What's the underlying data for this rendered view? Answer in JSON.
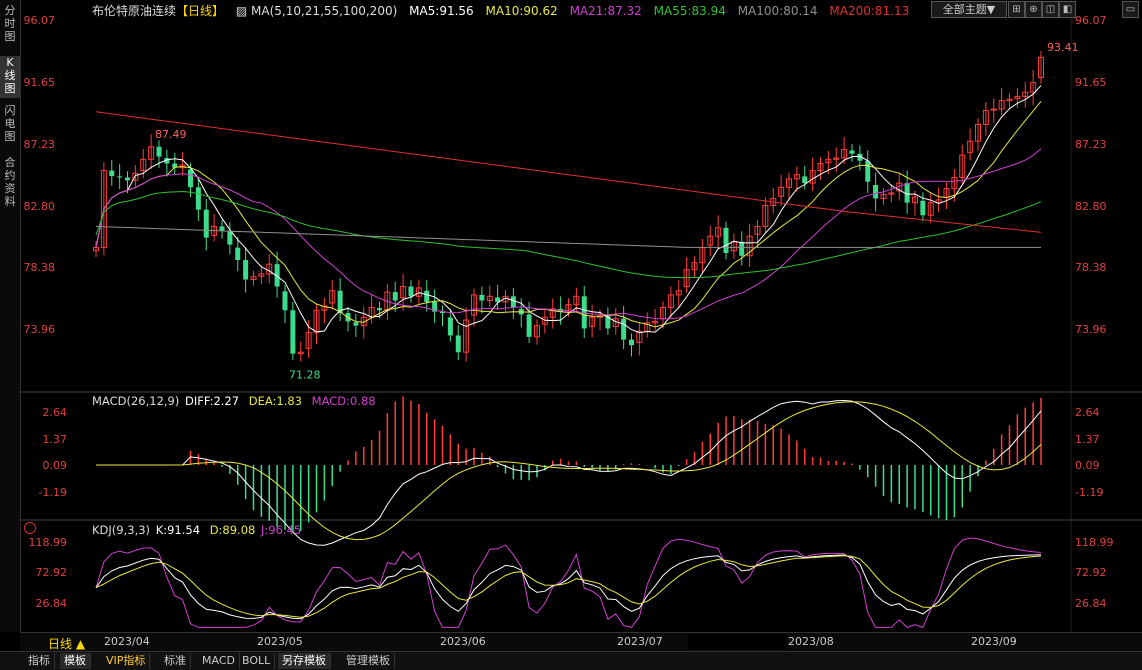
{
  "sidebar": {
    "items": [
      {
        "label": "分\n时\n图"
      },
      {
        "label": "K\n线\n图"
      },
      {
        "label": "闪\n电\n图"
      },
      {
        "label": "合\n约\n资\n料"
      }
    ]
  },
  "header": {
    "instrument": "布伦特原油连续",
    "period": "【日线】",
    "ma_params": "MA(5,10,21,55,100,200)",
    "ma5": "MA5:91.56",
    "ma10": "MA10:90.62",
    "ma21": "MA21:87.32",
    "ma55": "MA55:83.94",
    "ma100": "MA100:80.14",
    "ma200": "MA200:81.13"
  },
  "toolbar": {
    "theme_select": "全部主题▼",
    "btn1": "⊞",
    "btn2": "⊕",
    "btn3": "◫",
    "btn4": "◧",
    "btn5": "▭",
    "btn6": "✕"
  },
  "price_axis": [
    "96.07",
    "91.65",
    "87.23",
    "82.80",
    "78.38",
    "73.96"
  ],
  "price_marks": {
    "high": "87.49",
    "low": "71.28",
    "last": "93.41"
  },
  "macd": {
    "title": "MACD(26,12,9)",
    "diff": "DIFF:2.27",
    "dea": "DEA:1.83",
    "macd": "MACD:0.88",
    "axis": [
      "2.64",
      "1.37",
      "0.09",
      "-1.19"
    ]
  },
  "kdj": {
    "title": "KDJ(9,3,3)",
    "k": "K:91.54",
    "d": "D:89.08",
    "j": "J:96.45",
    "axis": [
      "118.99",
      "72.92",
      "26.84"
    ]
  },
  "xaxis": {
    "period_button": "日线 ▲",
    "dates": [
      "2023/04",
      "2023/05",
      "2023/06",
      "2023/07",
      "2023/08",
      "2023/09"
    ]
  },
  "bottom_tabs": [
    "指标",
    "模板",
    "VIP指标",
    "标准",
    "MACD",
    "BOLL",
    "另存模板",
    "管理模板"
  ],
  "colors": {
    "up": "#ff3c3c",
    "down": "#3cdc8c",
    "ma5": "#ffffff",
    "ma10": "#e8e840",
    "ma21": "#d040d0",
    "ma55": "#30c030",
    "ma100": "#909090",
    "ma200": "#e03030"
  }
}
